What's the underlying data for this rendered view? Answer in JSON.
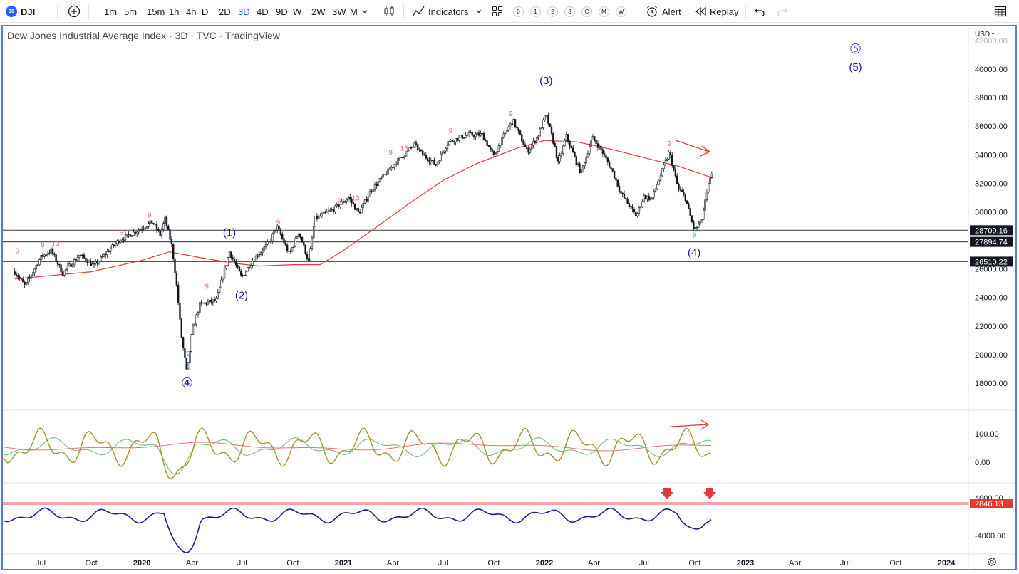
{
  "toolbar": {
    "symbol_badge": "30",
    "symbol": "DJI",
    "timeframes": [
      "1m",
      "5m",
      "15m",
      "1h",
      "4h",
      "D",
      "2D",
      "3D",
      "4D",
      "9D",
      "W",
      "2W",
      "3W",
      "M"
    ],
    "active_timeframe": "3D",
    "indicators_label": "Indicators",
    "template_buttons": [
      "0",
      "1",
      "2",
      "3",
      "C",
      "M",
      "W"
    ],
    "alert_label": "Alert",
    "replay_label": "Replay",
    "icons": [
      "plus-circle-icon",
      "chevron-down-icon",
      "candles-icon",
      "indicators-icon",
      "layout-icon",
      "alarm-clock-icon",
      "replay-icon",
      "undo-icon",
      "redo-icon",
      "calendar-table-icon"
    ]
  },
  "legend": {
    "title": "Dow Jones Industrial Average Index",
    "interval": "3D",
    "source": "TVC",
    "publisher": "TradingView",
    "separator": "·"
  },
  "chart_data": {
    "type": "candlestick",
    "currency_label": "USD",
    "y_ticks": [
      "40000.00",
      "38000.00",
      "36000.00",
      "34000.00",
      "32000.00",
      "30000.00",
      "26000.00",
      "24000.00",
      "22000.00",
      "20000.00",
      "18000.00"
    ],
    "ylim": [
      17000,
      42000
    ],
    "x_tick_labels": [
      "Jul",
      "Oct",
      "2020",
      "Apr",
      "Jul",
      "Oct",
      "2021",
      "Apr",
      "Jul",
      "Oct",
      "2022",
      "Apr",
      "Jul",
      "Oct",
      "2023",
      "Apr",
      "Jul",
      "Oct",
      "2024"
    ],
    "x_tick_dates": [
      "2019-07-01",
      "2019-10-01",
      "2020-01-01",
      "2020-04-01",
      "2020-07-01",
      "2020-10-01",
      "2021-01-01",
      "2021-04-01",
      "2021-07-01",
      "2021-10-01",
      "2022-01-01",
      "2022-04-01",
      "2022-07-01",
      "2022-10-01",
      "2023-01-01",
      "2023-04-01",
      "2023-07-01",
      "2023-10-01",
      "2024-01-01"
    ],
    "price_path": [
      [
        "2019-05-15",
        25800
      ],
      [
        "2019-06-03",
        24800
      ],
      [
        "2019-07-01",
        26800
      ],
      [
        "2019-07-20",
        27300
      ],
      [
        "2019-08-10",
        25700
      ],
      [
        "2019-09-10",
        27000
      ],
      [
        "2019-10-05",
        26200
      ],
      [
        "2019-11-20",
        28000
      ],
      [
        "2019-12-20",
        28600
      ],
      [
        "2020-01-20",
        29300
      ],
      [
        "2020-02-03",
        28400
      ],
      [
        "2020-02-12",
        29500
      ],
      [
        "2020-02-25",
        27500
      ],
      [
        "2020-03-05",
        24500
      ],
      [
        "2020-03-12",
        21500
      ],
      [
        "2020-03-23",
        18600
      ],
      [
        "2020-04-01",
        21600
      ],
      [
        "2020-04-15",
        23500
      ],
      [
        "2020-05-15",
        23800
      ],
      [
        "2020-06-08",
        27200
      ],
      [
        "2020-06-30",
        25400
      ],
      [
        "2020-07-20",
        26600
      ],
      [
        "2020-08-20",
        27900
      ],
      [
        "2020-09-02",
        29000
      ],
      [
        "2020-09-25",
        27000
      ],
      [
        "2020-10-12",
        28600
      ],
      [
        "2020-10-30",
        26500
      ],
      [
        "2020-11-10",
        29500
      ],
      [
        "2020-12-15",
        30200
      ],
      [
        "2021-01-10",
        31000
      ],
      [
        "2021-01-29",
        29900
      ],
      [
        "2021-02-20",
        31500
      ],
      [
        "2021-03-10",
        32300
      ],
      [
        "2021-04-10",
        33600
      ],
      [
        "2021-05-10",
        34700
      ],
      [
        "2021-05-25",
        34000
      ],
      [
        "2021-06-18",
        33300
      ],
      [
        "2021-07-10",
        34900
      ],
      [
        "2021-08-15",
        35400
      ],
      [
        "2021-09-10",
        35400
      ],
      [
        "2021-10-01",
        33900
      ],
      [
        "2021-10-20",
        35400
      ],
      [
        "2021-11-05",
        36400
      ],
      [
        "2021-12-01",
        34200
      ],
      [
        "2021-12-20",
        35300
      ],
      [
        "2022-01-04",
        36800
      ],
      [
        "2022-01-20",
        34500
      ],
      [
        "2022-01-26",
        33400
      ],
      [
        "2022-02-10",
        35300
      ],
      [
        "2022-03-08",
        32700
      ],
      [
        "2022-03-29",
        35200
      ],
      [
        "2022-04-15",
        34300
      ],
      [
        "2022-05-05",
        32800
      ],
      [
        "2022-05-20",
        31300
      ],
      [
        "2022-06-17",
        29700
      ],
      [
        "2022-07-01",
        31100
      ],
      [
        "2022-07-15",
        30900
      ],
      [
        "2022-08-16",
        34200
      ],
      [
        "2022-09-01",
        31600
      ],
      [
        "2022-09-13",
        31100
      ],
      [
        "2022-09-30",
        28700
      ],
      [
        "2022-10-13",
        29300
      ],
      [
        "2022-10-25",
        31700
      ],
      [
        "2022-11-01",
        32700
      ]
    ],
    "moving_average": [
      [
        "2019-05-15",
        25300
      ],
      [
        "2019-10-01",
        25800
      ],
      [
        "2020-01-01",
        26600
      ],
      [
        "2020-02-20",
        27200
      ],
      [
        "2020-04-15",
        26800
      ],
      [
        "2020-06-15",
        26400
      ],
      [
        "2020-08-01",
        26200
      ],
      [
        "2020-10-01",
        26300
      ],
      [
        "2020-11-20",
        26300
      ],
      [
        "2021-01-01",
        27300
      ],
      [
        "2021-03-01",
        28900
      ],
      [
        "2021-05-01",
        30600
      ],
      [
        "2021-07-01",
        32200
      ],
      [
        "2021-09-01",
        33400
      ],
      [
        "2021-11-15",
        34500
      ],
      [
        "2022-01-01",
        35000
      ],
      [
        "2022-03-01",
        34900
      ],
      [
        "2022-05-01",
        34400
      ],
      [
        "2022-07-01",
        33800
      ],
      [
        "2022-09-01",
        33200
      ],
      [
        "2022-11-01",
        32400
      ]
    ],
    "horizontal_levels": [
      {
        "value": 28709.16,
        "label": "28709.16"
      },
      {
        "value": 27894.74,
        "label": "27894.74"
      },
      {
        "value": 26510.22,
        "label": "26510.22"
      }
    ],
    "wave_labels": [
      {
        "text": "④",
        "date": "2020-03-23",
        "price": 17700
      },
      {
        "text": "(1)",
        "date": "2020-06-08",
        "price": 28300
      },
      {
        "text": "(2)",
        "date": "2020-06-30",
        "price": 23900
      },
      {
        "text": "(3)",
        "date": "2022-01-04",
        "price": 38950
      },
      {
        "text": "(4)",
        "date": "2022-09-30",
        "price": 26900
      },
      {
        "text": "⑤",
        "date": "2023-07-20",
        "price": 41100
      },
      {
        "text": "(5)",
        "date": "2023-07-20",
        "price": 39900
      }
    ],
    "td_counts": [
      {
        "text": "9",
        "date": "2019-05-20",
        "price": 27100,
        "color": "#e06c8a"
      },
      {
        "text": "9",
        "date": "2019-07-05",
        "price": 27500,
        "color": "#e06c8a"
      },
      {
        "text": "13",
        "date": "2019-07-25",
        "price": 27600,
        "color": "#e06c8a"
      },
      {
        "text": "9",
        "date": "2019-11-25",
        "price": 28400,
        "color": "#e06c8a"
      },
      {
        "text": "9",
        "date": "2020-01-15",
        "price": 29600,
        "color": "#e06c8a"
      },
      {
        "text": "9",
        "date": "2020-03-25",
        "price": 19900,
        "color": "#26c6da"
      },
      {
        "text": "9",
        "date": "2020-04-28",
        "price": 24600,
        "color": "#e06c8a"
      },
      {
        "text": "9",
        "date": "2020-09-05",
        "price": 29100,
        "color": "#e06c8a"
      },
      {
        "text": "9",
        "date": "2020-12-25",
        "price": 30600,
        "color": "#e06c8a"
      },
      {
        "text": "13",
        "date": "2021-01-20",
        "price": 30800,
        "color": "#e06c8a"
      },
      {
        "text": "9",
        "date": "2021-03-28",
        "price": 34000,
        "color": "#e06c8a"
      },
      {
        "text": "13",
        "date": "2021-04-18",
        "price": 34300,
        "color": "#e06c8a"
      },
      {
        "text": "9",
        "date": "2021-07-15",
        "price": 35500,
        "color": "#e06c8a"
      },
      {
        "text": "9",
        "date": "2021-11-01",
        "price": 36700,
        "color": "#e06c8a"
      },
      {
        "text": "9",
        "date": "2022-08-16",
        "price": 34600,
        "color": "#e06c8a"
      },
      {
        "text": "9",
        "date": "2022-10-01",
        "price": 28200,
        "color": "#26c6da"
      }
    ],
    "oscillator": {
      "y_ticks": [
        "100.00",
        "0.00"
      ],
      "colors": {
        "main": "#a6912b",
        "signal": "#66bb6a",
        "slow": "#e57373"
      }
    },
    "lower_indicator": {
      "y_ticks": [
        "4000.00",
        "-4000.00"
      ],
      "level_label": "2846.13",
      "level_value": 2846.13,
      "line_color": "#1a237e"
    },
    "annotations": [
      {
        "type": "arrow",
        "where": "price-pane",
        "color": "#e53935"
      },
      {
        "type": "arrow",
        "where": "oscillator-pane",
        "color": "#e53935"
      },
      {
        "type": "down-marker",
        "date": "2022-08-16",
        "color": "#e53935"
      },
      {
        "type": "down-marker",
        "date": "2022-11-01",
        "color": "#e53935"
      }
    ],
    "colors": {
      "candle": "#131722",
      "ma": "#e53935",
      "level_line": "#555555",
      "label_bg": "#131722",
      "accent": "#2962ff",
      "wave": "#1a1aa6"
    }
  }
}
